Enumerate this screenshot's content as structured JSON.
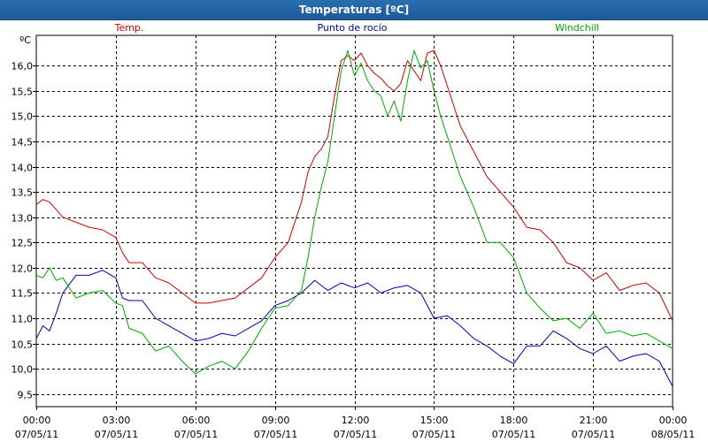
{
  "window": {
    "title": "Temperaturas [ºC]"
  },
  "chart_data": {
    "type": "line",
    "title": "Temperaturas [ºC]",
    "ylabel": "ºC",
    "ylim": [
      9.25,
      16.6
    ],
    "xlim": [
      0,
      24
    ],
    "y_ticks": [
      9.5,
      10.0,
      10.5,
      11.0,
      11.5,
      12.0,
      12.5,
      13.0,
      13.5,
      14.0,
      14.5,
      15.0,
      15.5,
      16.0
    ],
    "y_tick_labels": [
      "9,5",
      "10,0",
      "10,5",
      "11,0",
      "11,5",
      "12,0",
      "12,5",
      "13,0",
      "13,5",
      "14,0",
      "14,5",
      "15,0",
      "15,5",
      "16,0"
    ],
    "x_ticks": [
      {
        "hour": 0,
        "time": "00:00",
        "date": "07/05/11"
      },
      {
        "hour": 3,
        "time": "03:00",
        "date": "07/05/11"
      },
      {
        "hour": 6,
        "time": "06:00",
        "date": "07/05/11"
      },
      {
        "hour": 9,
        "time": "09:00",
        "date": "07/05/11"
      },
      {
        "hour": 12,
        "time": "12:00",
        "date": "07/05/11"
      },
      {
        "hour": 15,
        "time": "15:00",
        "date": "07/05/11"
      },
      {
        "hour": 18,
        "time": "18:00",
        "date": "07/05/11"
      },
      {
        "hour": 21,
        "time": "21:00",
        "date": "07/05/11"
      },
      {
        "hour": 24,
        "time": "00:00",
        "date": "08/05/11"
      }
    ],
    "grid": true,
    "series": [
      {
        "name": "Temp.",
        "color": "#cc0000",
        "legend_position": "left",
        "x": [
          0,
          0.25,
          0.5,
          0.75,
          1,
          1.5,
          2,
          2.5,
          3,
          3.25,
          3.5,
          4,
          4.5,
          5,
          5.5,
          6,
          6.5,
          7,
          7.5,
          8,
          8.5,
          9,
          9.5,
          10,
          10.25,
          10.5,
          10.75,
          11,
          11.25,
          11.5,
          11.75,
          12,
          12.25,
          12.5,
          12.75,
          13,
          13.25,
          13.5,
          13.75,
          14,
          14.25,
          14.5,
          14.75,
          15,
          15.25,
          15.5,
          15.75,
          16,
          16.5,
          17,
          17.5,
          18,
          18.5,
          19,
          19.5,
          20,
          20.5,
          21,
          21.5,
          22,
          22.5,
          23,
          23.5,
          24
        ],
        "values": [
          13.25,
          13.35,
          13.3,
          13.15,
          13.0,
          12.9,
          12.8,
          12.75,
          12.6,
          12.3,
          12.1,
          12.1,
          11.8,
          11.7,
          11.5,
          11.3,
          11.3,
          11.35,
          11.4,
          11.6,
          11.8,
          12.2,
          12.5,
          13.3,
          13.9,
          14.2,
          14.35,
          14.6,
          15.4,
          16.1,
          16.2,
          16.1,
          16.25,
          16.0,
          15.85,
          15.75,
          15.6,
          15.5,
          15.65,
          16.1,
          15.9,
          15.7,
          16.25,
          16.3,
          16.0,
          15.6,
          15.2,
          14.8,
          14.3,
          13.8,
          13.5,
          13.2,
          12.8,
          12.75,
          12.5,
          12.1,
          12.0,
          11.75,
          11.9,
          11.55,
          11.65,
          11.7,
          11.5,
          10.95
        ]
      },
      {
        "name": "Punto de rocío",
        "color": "#0000aa",
        "legend_position": "center",
        "x": [
          0,
          0.25,
          0.5,
          0.75,
          1,
          1.5,
          2,
          2.5,
          3,
          3.25,
          3.5,
          4,
          4.5,
          5,
          5.5,
          6,
          6.5,
          7,
          7.5,
          8,
          8.5,
          9,
          9.5,
          10,
          10.5,
          11,
          11.5,
          12,
          12.5,
          13,
          13.5,
          14,
          14.5,
          15,
          15.5,
          16,
          16.5,
          17,
          17.5,
          18,
          18.5,
          19,
          19.5,
          20,
          20.5,
          21,
          21.5,
          22,
          22.5,
          23,
          23.5,
          24
        ],
        "values": [
          10.6,
          10.85,
          10.75,
          11.1,
          11.5,
          11.85,
          11.85,
          11.95,
          11.8,
          11.4,
          11.35,
          11.35,
          11.0,
          10.85,
          10.7,
          10.55,
          10.6,
          10.7,
          10.65,
          10.8,
          10.95,
          11.25,
          11.35,
          11.5,
          11.75,
          11.55,
          11.7,
          11.6,
          11.7,
          11.5,
          11.6,
          11.65,
          11.5,
          11.0,
          11.05,
          10.85,
          10.6,
          10.45,
          10.25,
          10.1,
          10.45,
          10.45,
          10.75,
          10.6,
          10.4,
          10.3,
          10.45,
          10.15,
          10.25,
          10.3,
          10.15,
          9.65
        ]
      },
      {
        "name": "Windchill",
        "color": "#00aa00",
        "legend_position": "right",
        "x": [
          0,
          0.25,
          0.5,
          0.75,
          1,
          1.5,
          2,
          2.5,
          3,
          3.25,
          3.5,
          4,
          4.5,
          5,
          5.5,
          6,
          6.5,
          7,
          7.5,
          8,
          8.5,
          9,
          9.5,
          10,
          10.25,
          10.5,
          10.75,
          11,
          11.25,
          11.5,
          11.75,
          12,
          12.25,
          12.5,
          12.75,
          13,
          13.25,
          13.5,
          13.75,
          14,
          14.25,
          14.5,
          14.75,
          15,
          15.25,
          15.5,
          15.75,
          16,
          16.5,
          17,
          17.5,
          18,
          18.5,
          19,
          19.5,
          20,
          20.5,
          21,
          21.5,
          22,
          22.5,
          23,
          23.5,
          24
        ],
        "values": [
          11.85,
          11.8,
          12.0,
          11.75,
          11.8,
          11.4,
          11.5,
          11.55,
          11.3,
          11.25,
          10.8,
          10.7,
          10.35,
          10.45,
          10.15,
          9.9,
          10.05,
          10.15,
          10.0,
          10.35,
          10.8,
          11.2,
          11.25,
          11.55,
          12.2,
          13.0,
          13.6,
          14.1,
          15.0,
          15.9,
          16.3,
          15.8,
          16.05,
          15.7,
          15.5,
          15.4,
          15.0,
          15.3,
          14.9,
          15.7,
          16.3,
          15.95,
          16.1,
          15.5,
          15.0,
          14.6,
          14.2,
          13.8,
          13.2,
          12.5,
          12.5,
          12.2,
          11.5,
          11.2,
          10.95,
          11.0,
          10.8,
          11.1,
          10.7,
          10.75,
          10.65,
          10.7,
          10.55,
          10.4
        ]
      }
    ]
  }
}
